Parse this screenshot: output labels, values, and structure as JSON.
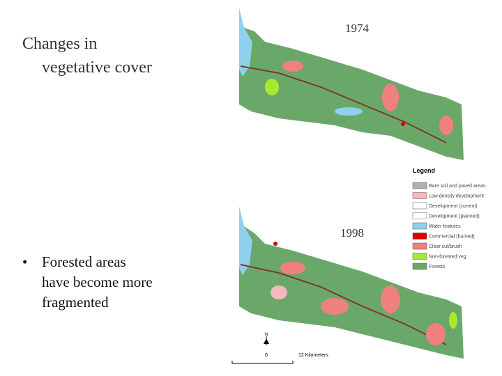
{
  "slide": {
    "title": [
      "Changes in",
      "vegetative cover"
    ],
    "bullets": [
      {
        "lines": [
          "Forested areas",
          "have become more",
          "fragmented"
        ]
      }
    ],
    "maps": [
      {
        "label": "1974"
      },
      {
        "label": "1998"
      }
    ],
    "legend": {
      "title": "Legend",
      "items": [
        {
          "label": "Bare soil and paved areas",
          "color": "#b0b0b0"
        },
        {
          "label": "Low density development",
          "color": "#f4b8c0"
        },
        {
          "label": "Development (current)",
          "color": "#ffffff"
        },
        {
          "label": "Development (planned)",
          "color": "#ffffff"
        },
        {
          "label": "Water features",
          "color": "#8fd0ec"
        },
        {
          "label": "Commercial (burned)",
          "color": "#e00000"
        },
        {
          "label": "Clear cut/brush",
          "color": "#f08080"
        },
        {
          "label": "Non-forested veg",
          "color": "#a8e830"
        },
        {
          "label": "Forests",
          "color": "#6aa86a"
        }
      ]
    },
    "scale": {
      "north": "N",
      "start": "0",
      "end": "12 Kilometers"
    }
  }
}
